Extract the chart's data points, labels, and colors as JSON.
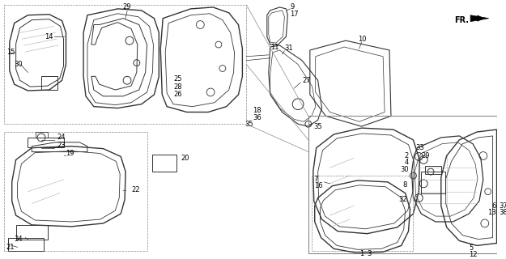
{
  "bg_color": "#ffffff",
  "line_color": "#333333",
  "text_color": "#000000",
  "gray": "#888888",
  "lightgray": "#bbbbbb"
}
